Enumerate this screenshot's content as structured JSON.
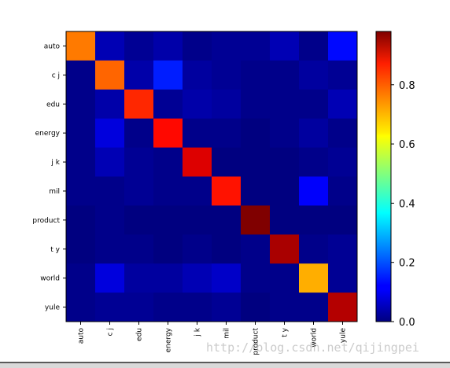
{
  "chart_data": {
    "type": "heatmap",
    "title": "",
    "xlabel": "",
    "ylabel": "",
    "x_categories": [
      "auto",
      "c j",
      "edu",
      "energy",
      "j k",
      "mil",
      "product",
      "t y",
      "world",
      "yule"
    ],
    "y_categories": [
      "auto",
      "c j",
      "edu",
      "energy",
      "j k",
      "mil",
      "product",
      "t y",
      "world",
      "yule"
    ],
    "matrix": [
      [
        0.74,
        0.05,
        0.02,
        0.04,
        0.01,
        0.02,
        0.02,
        0.05,
        0.01,
        0.13
      ],
      [
        0.01,
        0.76,
        0.04,
        0.15,
        0.03,
        0.02,
        0.01,
        0.01,
        0.03,
        0.02
      ],
      [
        0.01,
        0.04,
        0.82,
        0.02,
        0.04,
        0.03,
        0.01,
        0.01,
        0.01,
        0.05
      ],
      [
        0.01,
        0.09,
        0.01,
        0.85,
        0.01,
        0.01,
        0.0,
        0.01,
        0.03,
        0.01
      ],
      [
        0.01,
        0.05,
        0.02,
        0.01,
        0.89,
        0.0,
        0.0,
        0.0,
        0.01,
        0.02
      ],
      [
        0.01,
        0.01,
        0.02,
        0.01,
        0.01,
        0.84,
        0.0,
        0.0,
        0.12,
        0.01
      ],
      [
        0.0,
        0.01,
        0.0,
        0.0,
        0.0,
        0.0,
        0.98,
        0.0,
        0.0,
        0.0
      ],
      [
        0.0,
        0.01,
        0.01,
        0.0,
        0.01,
        0.0,
        0.01,
        0.94,
        0.01,
        0.02
      ],
      [
        0.01,
        0.09,
        0.03,
        0.03,
        0.05,
        0.07,
        0.01,
        0.01,
        0.69,
        0.02
      ],
      [
        0.01,
        0.02,
        0.02,
        0.01,
        0.01,
        0.02,
        0.0,
        0.01,
        0.01,
        0.93
      ]
    ],
    "colormap": "jet",
    "vmin": 0.0,
    "vmax": 0.98,
    "colorbar_ticks": [
      0.0,
      0.2,
      0.4,
      0.6,
      0.8
    ],
    "colorbar_tick_labels": [
      "0.0",
      "0.2",
      "0.4",
      "0.6",
      "0.8"
    ],
    "grid": false,
    "legend": "colorbar-right"
  },
  "watermark": "http://blog.csdn.net/qijingpei"
}
